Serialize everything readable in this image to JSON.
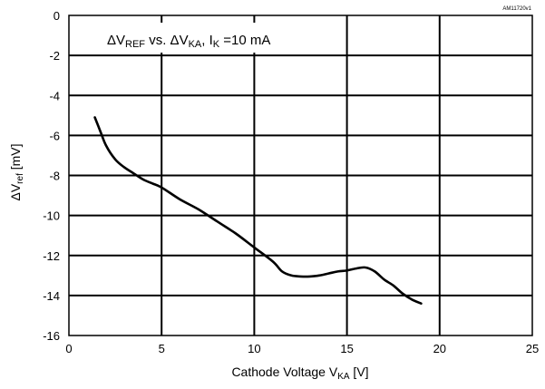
{
  "figure_id": "AM11720v1",
  "chart_data": {
    "type": "line",
    "title_parts": {
      "delta1": "ΔV",
      "sub1": "REF",
      "vs": " vs. ",
      "delta2": "ΔV",
      "sub2": "KA",
      "comma": ", ",
      "i": "I",
      "sub3": "K",
      "tail": " =10 mA"
    },
    "xlabel_parts": {
      "main": "Cathode Voltage V",
      "sub": "KA",
      "unit": " [V]"
    },
    "ylabel_parts": {
      "main": "ΔV",
      "sub": "ref",
      "unit": "  [mV]"
    },
    "xlim": [
      0,
      25
    ],
    "ylim": [
      -16,
      0
    ],
    "x_ticks": [
      0,
      5,
      10,
      15,
      20,
      25
    ],
    "y_ticks": [
      0,
      -2,
      -4,
      -6,
      -8,
      -10,
      -12,
      -14,
      -16
    ],
    "grid": true,
    "series": [
      {
        "x": [
          1.4,
          1.7,
          2.0,
          2.5,
          3.0,
          3.5,
          4.0,
          4.5,
          5.0,
          6.0,
          7.0,
          8.0,
          9.0,
          10.0,
          11.0,
          11.5,
          12.0,
          12.5,
          13.0,
          13.5,
          14.0,
          14.5,
          15.0,
          15.5,
          16.0,
          16.5,
          17.0,
          17.5,
          18.0,
          18.5,
          19.0
        ],
        "y": [
          -5.1,
          -5.8,
          -6.5,
          -7.2,
          -7.6,
          -7.9,
          -8.2,
          -8.4,
          -8.6,
          -9.2,
          -9.7,
          -10.3,
          -10.9,
          -11.6,
          -12.3,
          -12.8,
          -13.0,
          -13.05,
          -13.05,
          -13.0,
          -12.9,
          -12.8,
          -12.75,
          -12.65,
          -12.6,
          -12.8,
          -13.2,
          -13.5,
          -13.9,
          -14.2,
          -14.4
        ]
      }
    ]
  }
}
